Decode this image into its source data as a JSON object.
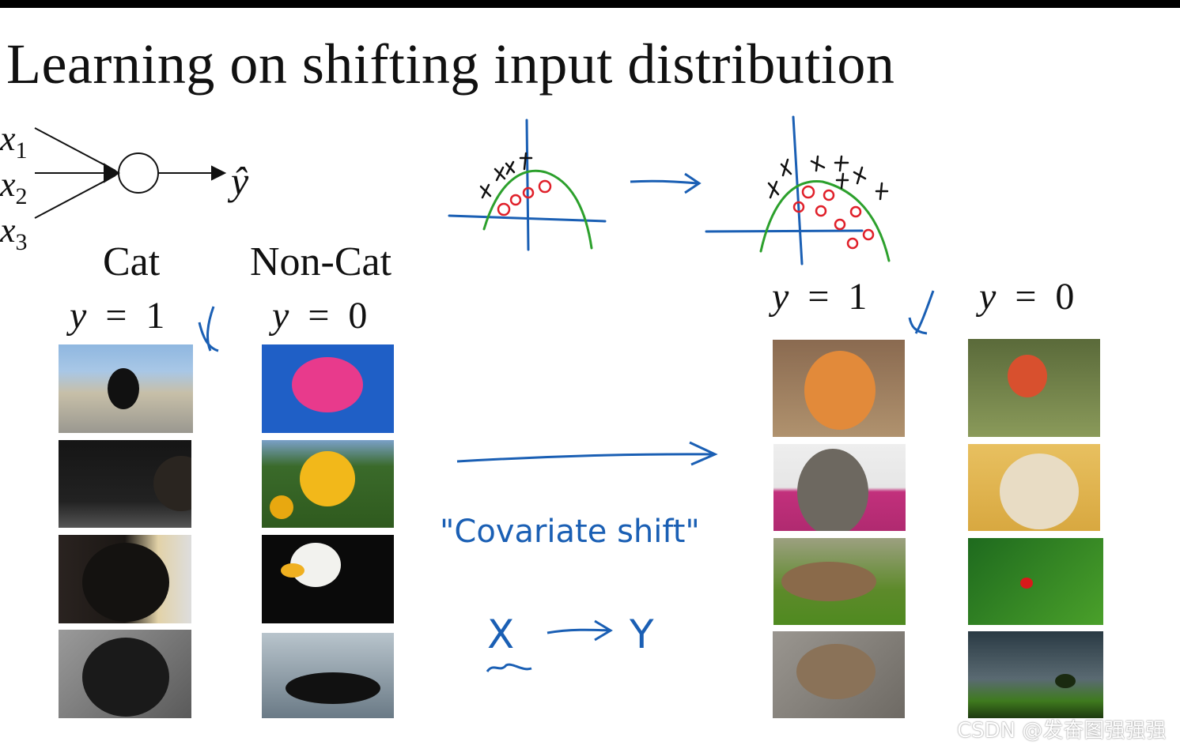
{
  "title": "Learning on shifting input distribution",
  "network": {
    "inputs": [
      "x",
      "x",
      "x"
    ],
    "input_subscripts": [
      "1",
      "2",
      "3"
    ],
    "output": "ŷ"
  },
  "left": {
    "cat_label": "Cat",
    "noncat_label": "Non-Cat",
    "cat_eq": {
      "var": "y",
      "op": "=",
      "val": "1"
    },
    "noncat_eq": {
      "var": "y",
      "op": "=",
      "val": "0"
    },
    "cat_images": [
      "black cat on wall by sea",
      "black cat in dark",
      "black fluffy cat",
      "black cat close-up"
    ],
    "noncat_images": [
      "pink dahlia flower",
      "sunflowers",
      "bald eagle",
      "orca whale"
    ]
  },
  "right": {
    "cat_eq": {
      "var": "y",
      "op": "=",
      "val": "1"
    },
    "noncat_eq": {
      "var": "y",
      "op": "=",
      "val": "0"
    },
    "cat_images": [
      "orange tabby cat",
      "yawning tabby cat",
      "cat lying on grass",
      "tabby cat on gravel"
    ],
    "noncat_images": [
      "bullfinch bird on branch",
      "horse",
      "ladybug on leaf",
      "tree under storm clouds"
    ]
  },
  "annotations": {
    "covariate_shift": "\"Covariate shift\"",
    "x_to_y": [
      "X",
      "Y"
    ]
  },
  "watermark": "CSDN @发奋图强强强",
  "colors": {
    "ink_blue": "#1a5fb4",
    "curve_green": "#2ca02c",
    "circle_red": "#e0202a"
  }
}
